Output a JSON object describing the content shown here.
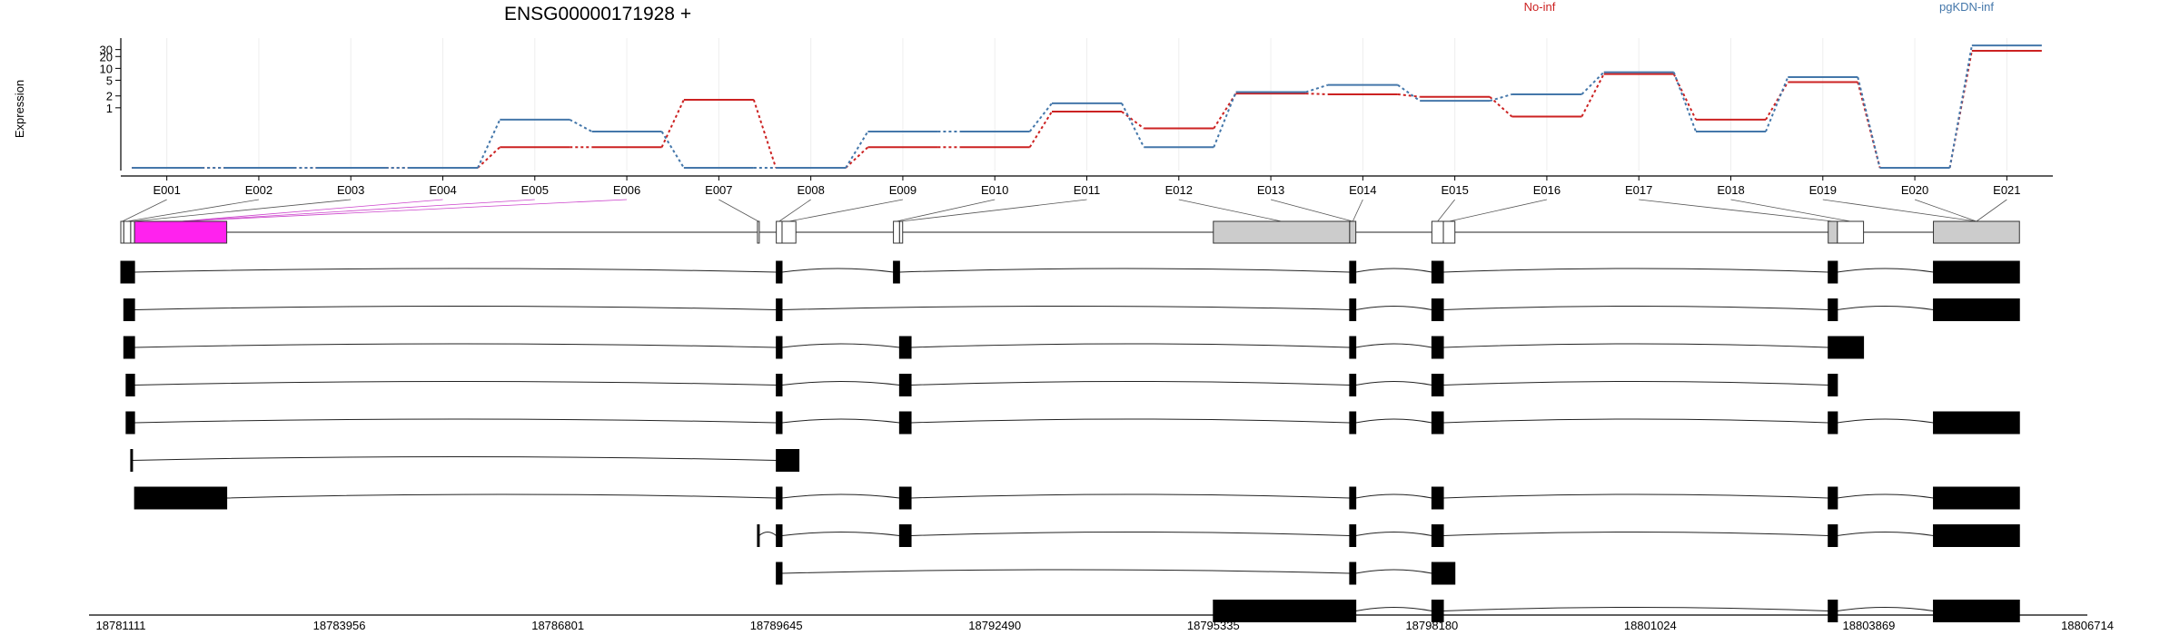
{
  "chart_data": {
    "type": "line",
    "title": "ENSG00000171928 +",
    "ylabel": "Expression",
    "yscale": "log",
    "yticks": [
      1,
      2,
      5,
      10,
      20,
      30
    ],
    "grid": true,
    "legend": "top",
    "exons": [
      "E001",
      "E002",
      "E003",
      "E004",
      "E005",
      "E006",
      "E007",
      "E008",
      "E009",
      "E010",
      "E011",
      "E012",
      "E013",
      "E014",
      "E015",
      "E016",
      "E017",
      "E018",
      "E019",
      "E020",
      "E021"
    ],
    "series": [
      {
        "name": "No-inf",
        "color": "#cc2222",
        "values": [
          0.03,
          0.03,
          0.03,
          0.03,
          0.1,
          0.1,
          1.6,
          0.03,
          0.1,
          0.1,
          0.8,
          0.3,
          2.3,
          2.2,
          1.9,
          0.6,
          7.2,
          0.5,
          4.5,
          0.03,
          28
        ]
      },
      {
        "name": "pgKDN-inf",
        "color": "#4477aa",
        "values": [
          0.03,
          0.03,
          0.03,
          0.03,
          0.5,
          0.25,
          0.03,
          0.03,
          0.25,
          0.25,
          1.3,
          0.1,
          2.5,
          3.8,
          1.5,
          2.2,
          8.0,
          0.25,
          6.0,
          0.03,
          38
        ]
      }
    ],
    "genomic_axis": {
      "min": 18781111,
      "max": 18806714,
      "ticks": [
        18781111,
        18783956,
        18786801,
        18789645,
        18792490,
        18795335,
        18798180,
        18801024,
        18803869,
        18806714
      ]
    },
    "gene_model": {
      "exon_segments": [
        [
          18781111,
          18781150,
          "none"
        ],
        [
          18781150,
          18781240,
          "none"
        ],
        [
          18781240,
          18781290,
          "white"
        ],
        [
          18781290,
          18782490,
          "highlight"
        ],
        [
          18789400,
          18789420,
          "none"
        ],
        [
          18789645,
          18789720,
          "white"
        ],
        [
          18789720,
          18789900,
          "white"
        ],
        [
          18791170,
          18791250,
          "white"
        ],
        [
          18791250,
          18791290,
          "white"
        ],
        [
          18795335,
          18797110,
          "grey"
        ],
        [
          18797110,
          18797190,
          "grey"
        ],
        [
          18798180,
          18798330,
          "white"
        ],
        [
          18798330,
          18798480,
          "white"
        ],
        [
          18803340,
          18803460,
          "grey"
        ],
        [
          18803460,
          18803800,
          "white"
        ],
        [
          18804710,
          18805830,
          "grey"
        ]
      ],
      "highlight_color": "#ff22ee",
      "exon_track_indices": [
        0,
        1,
        2,
        3,
        4,
        5,
        6,
        7,
        8,
        9,
        10,
        11,
        12,
        13,
        14,
        15,
        16,
        17,
        18,
        19,
        20
      ]
    },
    "transcripts": [
      [
        [
          18781111,
          18781290
        ],
        [
          18789645,
          18789720
        ],
        [
          18791170,
          18791250
        ],
        [
          18797110,
          18797190
        ],
        [
          18798180,
          18798330
        ],
        [
          18803340,
          18803460
        ],
        [
          18804710,
          18805830
        ]
      ],
      [
        [
          18781150,
          18781290
        ],
        [
          18789645,
          18789720
        ],
        [
          18797110,
          18797190
        ],
        [
          18798180,
          18798330
        ],
        [
          18803340,
          18803460
        ],
        [
          18804710,
          18805830
        ]
      ],
      [
        [
          18781150,
          18781290
        ],
        [
          18789645,
          18789720
        ],
        [
          18791250,
          18791400
        ],
        [
          18797110,
          18797190
        ],
        [
          18798180,
          18798330
        ],
        [
          18803340,
          18803800
        ]
      ],
      [
        [
          18781180,
          18781290
        ],
        [
          18789645,
          18789720
        ],
        [
          18791250,
          18791400
        ],
        [
          18797110,
          18797190
        ],
        [
          18798180,
          18798330
        ],
        [
          18803340,
          18803460
        ]
      ],
      [
        [
          18781180,
          18781290
        ],
        [
          18789645,
          18789720
        ],
        [
          18791250,
          18791400
        ],
        [
          18797110,
          18797190
        ],
        [
          18798180,
          18798330
        ],
        [
          18803340,
          18803460
        ],
        [
          18804710,
          18805830
        ]
      ],
      [
        [
          18781240,
          18781260
        ],
        [
          18789645,
          18789940
        ]
      ],
      [
        [
          18781290,
          18782490
        ],
        [
          18789645,
          18789720
        ],
        [
          18791250,
          18791400
        ],
        [
          18797110,
          18797190
        ],
        [
          18798180,
          18798330
        ],
        [
          18803340,
          18803460
        ],
        [
          18804710,
          18805830
        ]
      ],
      [
        [
          18789400,
          18789420
        ],
        [
          18789645,
          18789720
        ],
        [
          18791250,
          18791400
        ],
        [
          18797110,
          18797190
        ],
        [
          18798180,
          18798330
        ],
        [
          18803340,
          18803460
        ],
        [
          18804710,
          18805830
        ]
      ],
      [
        [
          18789645,
          18789720
        ],
        [
          18797110,
          18797190
        ],
        [
          18798180,
          18798480
        ]
      ],
      [
        [
          18795335,
          18797190
        ],
        [
          18798180,
          18798330
        ],
        [
          18803340,
          18803460
        ],
        [
          18804710,
          18805830
        ]
      ]
    ]
  }
}
